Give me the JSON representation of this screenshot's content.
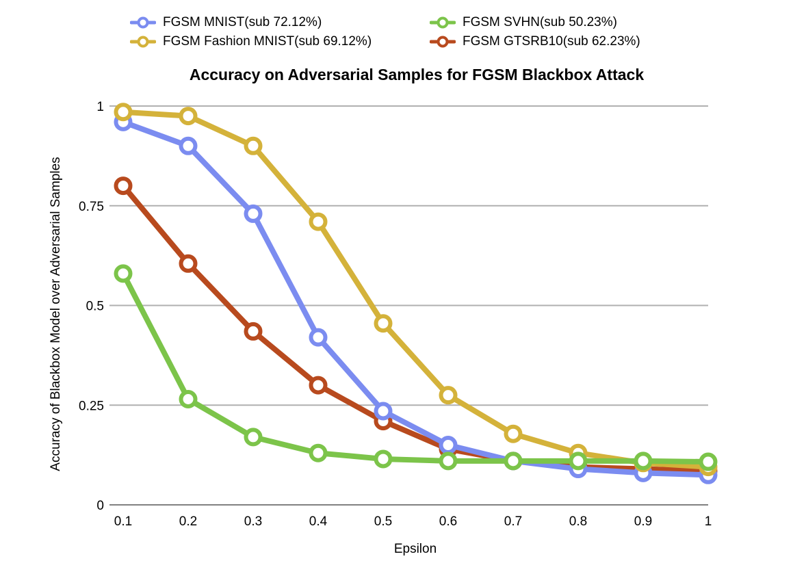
{
  "chart_data": {
    "type": "line",
    "title": "Accuracy on Adversarial Samples for FGSM Blackbox Attack",
    "xlabel": "Epsilon",
    "ylabel": "Accuracy of Blackbox Model over Adversarial Samples",
    "x": [
      0.1,
      0.2,
      0.3,
      0.4,
      0.5,
      0.6,
      0.7,
      0.8,
      0.9,
      1
    ],
    "x_tick_labels": [
      "0.1",
      "0.2",
      "0.3",
      "0.4",
      "0.5",
      "0.6",
      "0.7",
      "0.8",
      "0.9",
      "1"
    ],
    "y_ticks": [
      0,
      0.25,
      0.5,
      0.75,
      1
    ],
    "y_tick_labels": [
      "0",
      "0.25",
      "0.5",
      "0.75",
      "1"
    ],
    "ylim": [
      0,
      1
    ],
    "grid": true,
    "legend_position": "top",
    "series": [
      {
        "name": "FGSM MNIST(sub 72.12%)",
        "color": "#7b8cf0",
        "values": [
          0.96,
          0.9,
          0.73,
          0.42,
          0.235,
          0.15,
          0.11,
          0.09,
          0.08,
          0.075
        ]
      },
      {
        "name": "FGSM Fashion MNIST(sub 69.12%)",
        "color": "#d4b23a",
        "values": [
          0.985,
          0.975,
          0.9,
          0.71,
          0.455,
          0.275,
          0.178,
          0.13,
          0.105,
          0.095
        ]
      },
      {
        "name": "FGSM SVHN(sub 50.23%)",
        "color": "#7cc44a",
        "values": [
          0.58,
          0.265,
          0.17,
          0.13,
          0.115,
          0.11,
          0.11,
          0.11,
          0.11,
          0.108
        ]
      },
      {
        "name": "FGSM GTSRB10(sub 62.23%)",
        "color": "#b84a1e",
        "values": [
          0.8,
          0.605,
          0.435,
          0.3,
          0.21,
          0.14,
          0.11,
          0.095,
          0.09,
          0.085
        ]
      }
    ],
    "draw_order": [
      3,
      0,
      1,
      2
    ]
  }
}
